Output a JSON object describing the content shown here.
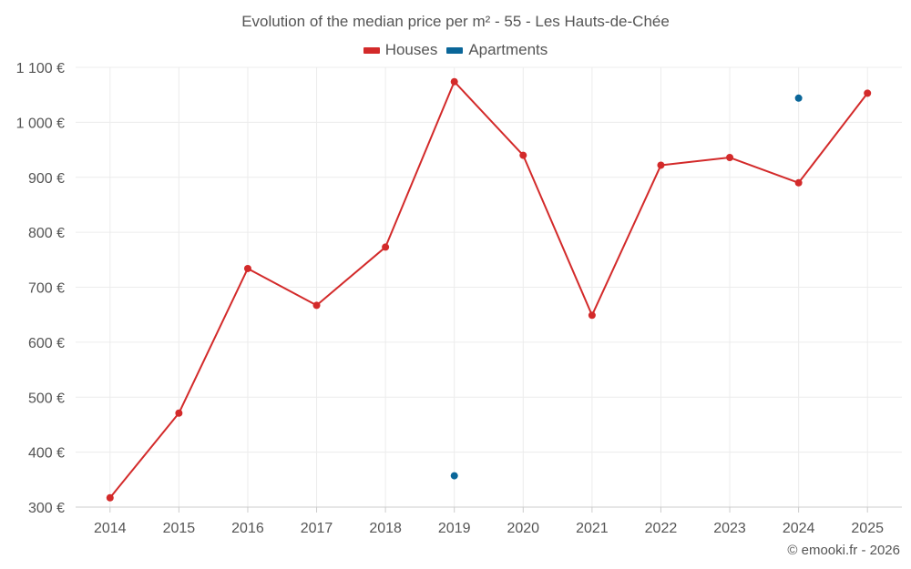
{
  "chart_data": {
    "type": "line",
    "title": "Evolution of the median price per m² - 55 - Les Hauts-de-Chée",
    "categories": [
      "2014",
      "2015",
      "2016",
      "2017",
      "2018",
      "2019",
      "2020",
      "2021",
      "2022",
      "2023",
      "2024",
      "2025"
    ],
    "ylim": [
      300,
      1100
    ],
    "yticks": [
      300,
      400,
      500,
      600,
      700,
      800,
      900,
      1000,
      1100
    ],
    "ytick_labels": [
      "300 €",
      "400 €",
      "500 €",
      "600 €",
      "700 €",
      "800 €",
      "900 €",
      "1 000 €",
      "1 100 €"
    ],
    "grid": true,
    "legend_position": "top-center",
    "series": [
      {
        "name": "Houses",
        "color": "#d32a2a",
        "style": "line-with-markers",
        "values": [
          317,
          471,
          734,
          667,
          773,
          1074,
          940,
          649,
          922,
          936,
          890,
          1053
        ]
      },
      {
        "name": "Apartments",
        "color": "#0a6699",
        "style": "markers",
        "values": [
          null,
          null,
          null,
          null,
          null,
          357,
          null,
          null,
          null,
          null,
          1044,
          null
        ]
      }
    ]
  },
  "credit": "© emooki.fr - 2026"
}
